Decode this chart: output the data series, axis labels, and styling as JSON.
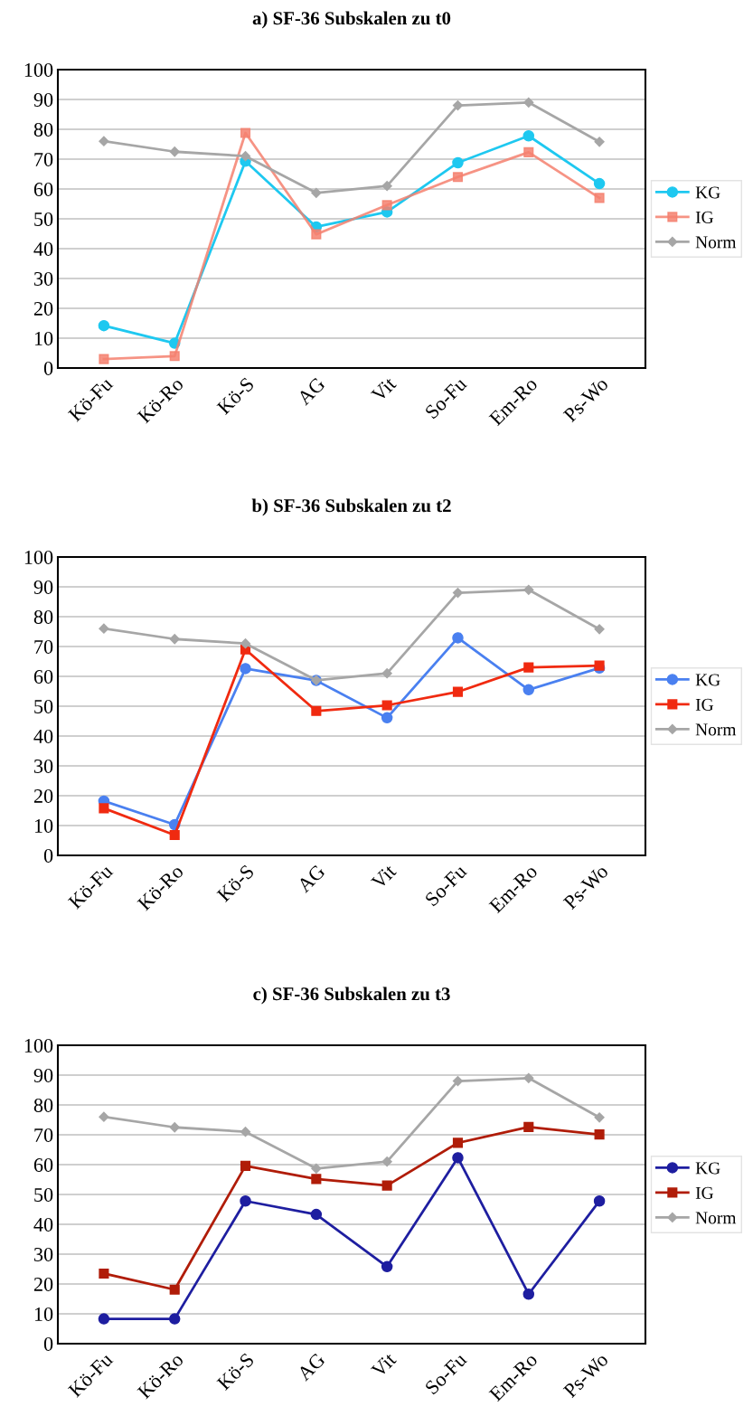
{
  "chart_data": [
    {
      "type": "line",
      "title": "a) SF-36 Subskalen zu t0",
      "categories": [
        "Kö-Fu",
        "Kö-Ro",
        "Kö-S",
        "AG",
        "Vit",
        "So-Fu",
        "Em-Ro",
        "Ps-Wo"
      ],
      "ylim": [
        0,
        100
      ],
      "yticks": [
        0,
        10,
        20,
        30,
        40,
        50,
        60,
        70,
        80,
        90,
        100
      ],
      "grid": "y",
      "legend": "right",
      "series": [
        {
          "name": "KG",
          "color": "#1ec8f0",
          "marker": "circle",
          "values": [
            14.2,
            8.3,
            69.3,
            47.3,
            52.3,
            68.8,
            77.8,
            61.8
          ]
        },
        {
          "name": "IG",
          "color": "#f4806e",
          "marker": "square",
          "values": [
            3,
            4,
            78.8,
            44.8,
            54.6,
            64,
            72.3,
            57
          ]
        },
        {
          "name": "Norm",
          "color": "#a6a6a6",
          "marker": "diamond",
          "values": [
            76,
            72.5,
            71,
            58.7,
            61,
            88,
            89,
            75.8
          ]
        }
      ]
    },
    {
      "type": "line",
      "title": "b) SF-36 Subskalen zu t2",
      "categories": [
        "Kö-Fu",
        "Kö-Ro",
        "Kö-S",
        "AG",
        "Vit",
        "So-Fu",
        "Em-Ro",
        "Ps-Wo"
      ],
      "ylim": [
        0,
        100
      ],
      "yticks": [
        0,
        10,
        20,
        30,
        40,
        50,
        60,
        70,
        80,
        90,
        100
      ],
      "grid": "y",
      "legend": "right",
      "series": [
        {
          "name": "KG",
          "color": "#4a80f0",
          "marker": "circle",
          "values": [
            18.2,
            10.3,
            62.6,
            58.6,
            46.1,
            72.9,
            55.5,
            62.8
          ]
        },
        {
          "name": "IG",
          "color": "#f02a10",
          "marker": "square",
          "values": [
            15.8,
            6.8,
            69,
            48.4,
            50.3,
            54.8,
            63,
            63.6
          ]
        },
        {
          "name": "Norm",
          "color": "#a6a6a6",
          "marker": "diamond",
          "values": [
            76,
            72.5,
            71,
            58.7,
            61,
            88,
            89,
            75.8
          ]
        }
      ]
    },
    {
      "type": "line",
      "title": "c) SF-36 Subskalen zu t3",
      "categories": [
        "Kö-Fu",
        "Kö-Ro",
        "Kö-S",
        "AG",
        "Vit",
        "So-Fu",
        "Em-Ro",
        "Ps-Wo"
      ],
      "ylim": [
        0,
        100
      ],
      "yticks": [
        0,
        10,
        20,
        30,
        40,
        50,
        60,
        70,
        80,
        90,
        100
      ],
      "grid": "y",
      "legend": "right",
      "series": [
        {
          "name": "KG",
          "color": "#1e1ea0",
          "marker": "circle",
          "values": [
            8.3,
            8.3,
            47.8,
            43.3,
            25.8,
            62.3,
            16.6,
            47.8
          ]
        },
        {
          "name": "IG",
          "color": "#b01c08",
          "marker": "square",
          "values": [
            23.5,
            18.1,
            59.6,
            55.2,
            53,
            67.3,
            72.6,
            70.1
          ]
        },
        {
          "name": "Norm",
          "color": "#a6a6a6",
          "marker": "diamond",
          "values": [
            76,
            72.5,
            71,
            58.7,
            61,
            88,
            89,
            75.8
          ]
        }
      ]
    }
  ]
}
